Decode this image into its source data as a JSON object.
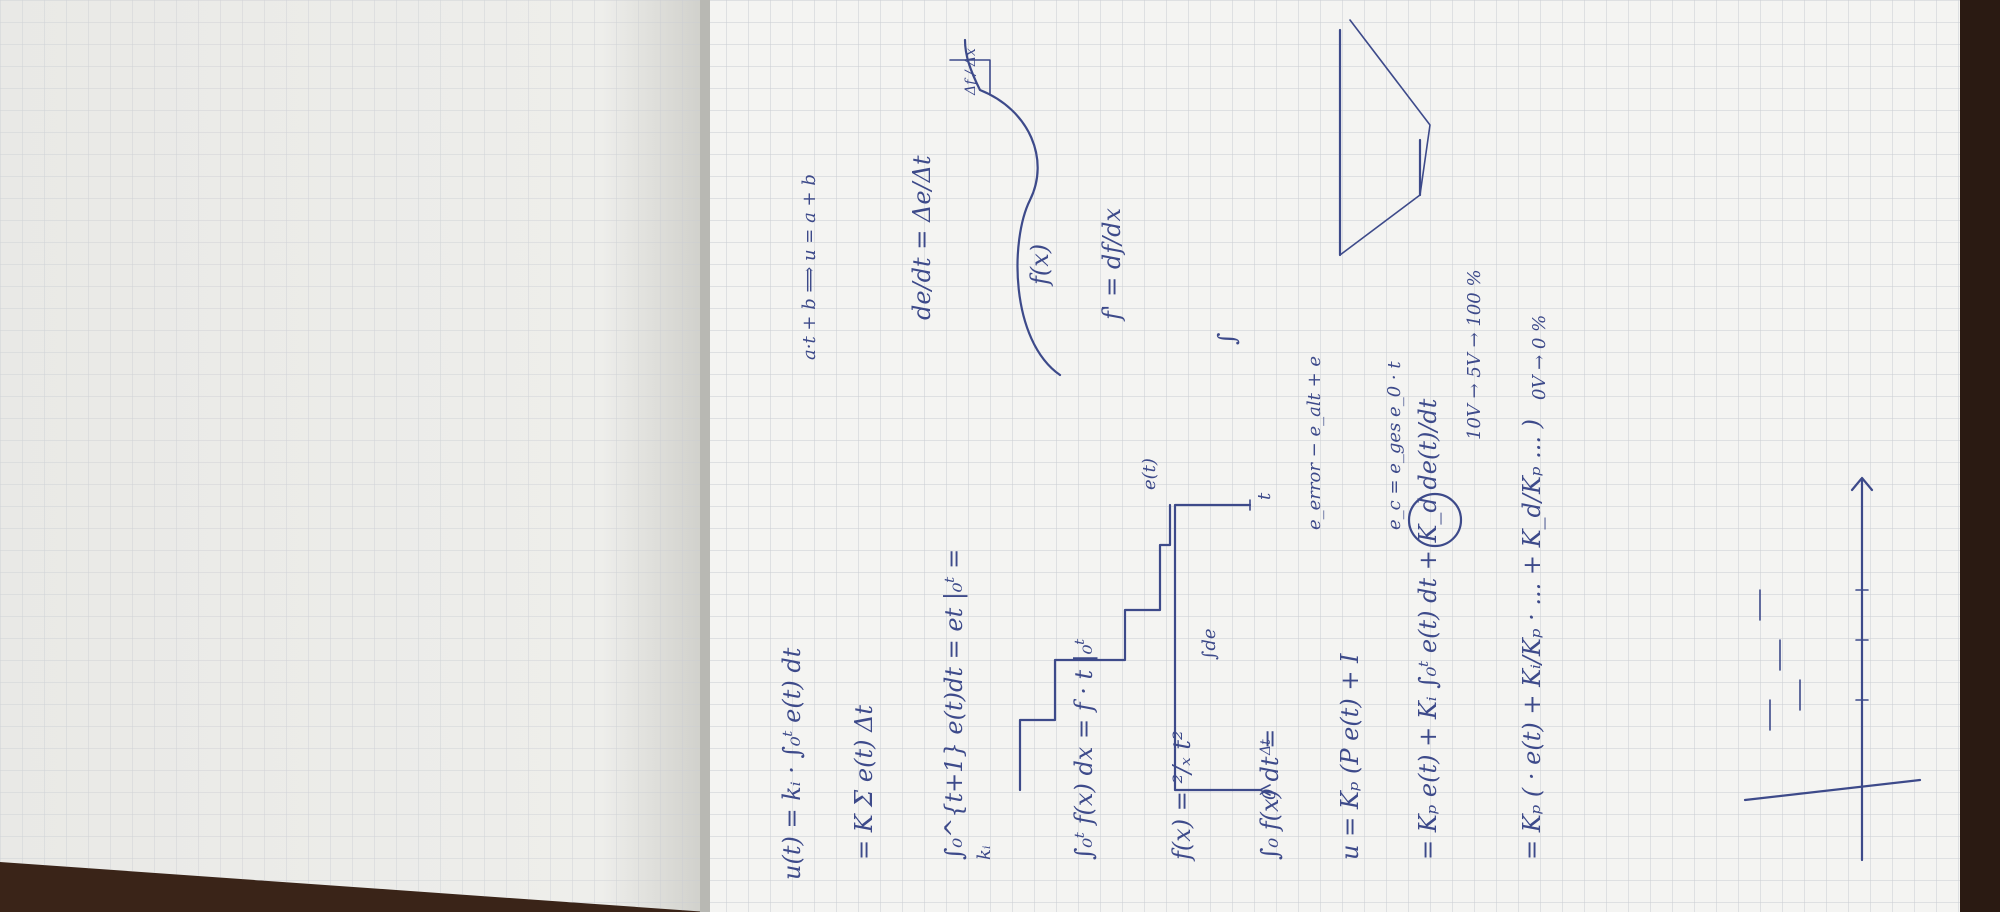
{
  "document": {
    "type": "handwritten-notebook-notes",
    "rotation_deg": -90,
    "colors": {
      "ink": "#3d4a8a",
      "paper": "#f4f4f2",
      "grid": "#c9ccd2",
      "desk": "#3a2418"
    }
  },
  "notes": {
    "eq_u_integral": "u(t) = kᵢ · ∫₀ᵗ e(t) dt",
    "eq_sum": "= K Σ e(t) Δt",
    "eq_integral_et": "∫₀^{t+1} e(t)dt = et |₀ᵗ =",
    "label_ki": "kᵢ",
    "eq_integral_fx": "∫₀ᵗ f(x) dx = f · t |₀ᵗ",
    "eq_fx_t2": "f(x) = ²/ₓ t²",
    "eq_integral_fx_dt": "∫₀ f(x) dt =",
    "eq_u_pid_def": "u = Kₚ (P e(t) + I",
    "eq_pid_expanded": "= Kₚ e(t) + Kᵢ ∫₀ᵗ e(t) dt + K_d de(t)/dt",
    "eq_pid_factored": "= Kₚ ( · e(t) + Kᵢ/Kₚ · ... + K_d/Kₚ ... )",
    "eq_slope_intercept": "a·t + b  ⟹  u = a + b",
    "eq_derivative": "de/dt = Δe/Δt",
    "label_fx_curve": "f(x)",
    "eq_f_prime": "f' = df/dx",
    "label_ddx": "Δf / Δx",
    "label_et": "e(t)",
    "label_t_axis": "t",
    "label_de": "∫de",
    "label_delta_t": "Δt",
    "label_integral_sign": "∫",
    "eq_e_error": "e_error − e_alt + e",
    "eq_ec": "e_c = e_ges e_0 · t",
    "eq_volts_10": "10V → 5V → 100 %",
    "eq_volts_0": "0V → 0 %",
    "label_zero": "0"
  }
}
